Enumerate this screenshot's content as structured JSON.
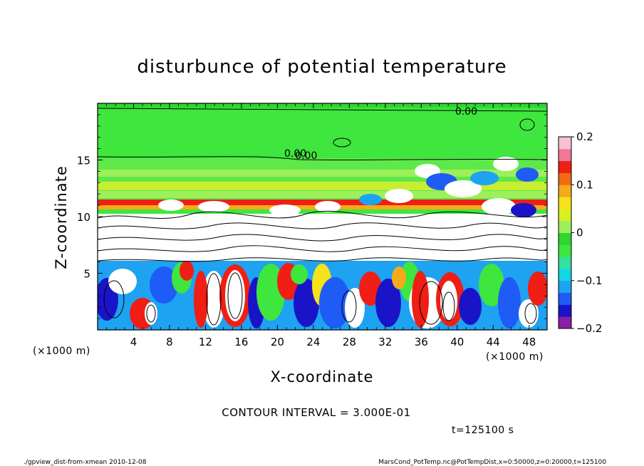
{
  "chart_data": {
    "type": "heatmap",
    "title": "disturbunce of potential temperature",
    "xlabel": "X-coordinate",
    "ylabel": "Z-coordinate",
    "x_unit": "(×1000 m)",
    "y_unit": "(×1000 m)",
    "xlim": [
      0,
      50
    ],
    "ylim": [
      0,
      20
    ],
    "x_ticks": [
      4,
      8,
      12,
      16,
      20,
      24,
      28,
      32,
      36,
      40,
      44,
      48
    ],
    "y_ticks": [
      5,
      10,
      15
    ],
    "colorbar": {
      "range": [
        -0.2,
        0.2
      ],
      "ticks": [
        {
          "value": 0.2,
          "label": "0.2"
        },
        {
          "value": 0.1,
          "label": "0.1"
        },
        {
          "value": 0,
          "label": "0"
        },
        {
          "value": -0.1,
          "label": "−0.1"
        },
        {
          "value": -0.2,
          "label": "−0.2"
        }
      ],
      "colors": [
        "#8a1fa8",
        "#1a14c8",
        "#1f5bf5",
        "#1ea2f2",
        "#13d5e6",
        "#33e0a0",
        "#3ee63e",
        "#2fd62f",
        "#9cf05a",
        "#d6f022",
        "#f5e21a",
        "#f5aa1a",
        "#f26a14",
        "#f01e14",
        "#f07896",
        "#f8c0d2"
      ]
    },
    "contour_interval": "CONTOUR INTERVAL = 3.000E-01",
    "contour_labels": [
      {
        "text": "0.00",
        "x": 41,
        "z": 19.3
      },
      {
        "text": "0.00",
        "x": 22,
        "z": 15.6
      },
      {
        "text": "0.00",
        "x": 23.2,
        "z": 15.4
      }
    ],
    "time_label": "t=125100 s",
    "footer_left": "./gpview_dist-from-xmean  2010-12-08",
    "footer_right": "MarsCond_PotTemp.nc@PotTempDist,x=0:50000,z=0:20000,t=125100"
  }
}
